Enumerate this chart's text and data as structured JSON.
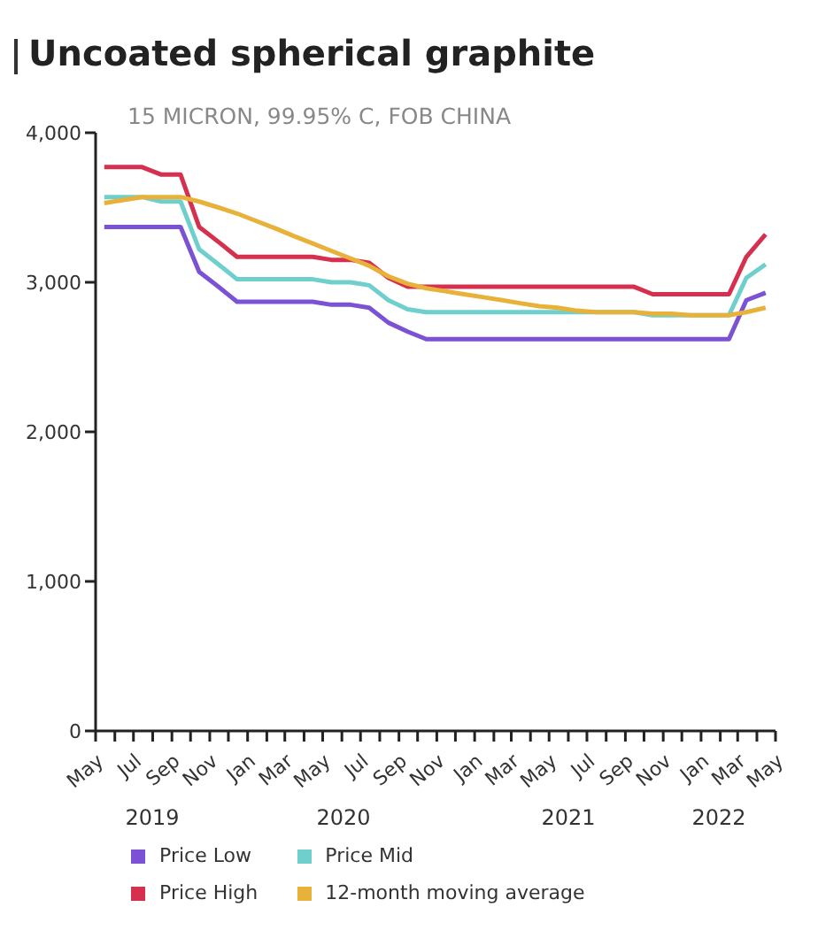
{
  "chart_data": {
    "type": "line",
    "title": "Uncoated spherical graphite",
    "subtitle": "15 MICRON, 99.95% C, FOB CHINA",
    "x": [
      "2019-05-15",
      "2019-06-15",
      "2019-07-15",
      "2019-08-15",
      "2019-09-15",
      "2019-10-15",
      "2019-11-15",
      "2019-12-15",
      "2020-01-15",
      "2020-02-15",
      "2020-03-15",
      "2020-04-15",
      "2020-05-15",
      "2020-06-15",
      "2020-07-15",
      "2020-08-15",
      "2020-09-15",
      "2020-10-15",
      "2020-11-15",
      "2020-12-15",
      "2021-01-15",
      "2021-02-15",
      "2021-03-15",
      "2021-04-15",
      "2021-05-15",
      "2021-06-15",
      "2021-07-15",
      "2021-08-15",
      "2021-09-15",
      "2021-10-15",
      "2021-11-15",
      "2021-12-15",
      "2022-01-15",
      "2022-02-15",
      "2022-03-15",
      "2022-04-15"
    ],
    "series": [
      {
        "name": "Price Low",
        "color": "#7b52d3",
        "values": [
          3370,
          3370,
          3370,
          3370,
          3370,
          3070,
          2970,
          2870,
          2870,
          2870,
          2870,
          2870,
          2850,
          2850,
          2830,
          2730,
          2670,
          2620,
          2620,
          2620,
          2620,
          2620,
          2620,
          2620,
          2620,
          2620,
          2620,
          2620,
          2620,
          2620,
          2620,
          2620,
          2620,
          2620,
          2880,
          2930
        ]
      },
      {
        "name": "Price Mid",
        "color": "#6ecfcc",
        "values": [
          3570,
          3570,
          3570,
          3540,
          3540,
          3220,
          3120,
          3020,
          3020,
          3020,
          3020,
          3020,
          3000,
          3000,
          2980,
          2880,
          2820,
          2800,
          2800,
          2800,
          2800,
          2800,
          2800,
          2800,
          2800,
          2800,
          2800,
          2800,
          2800,
          2780,
          2780,
          2780,
          2780,
          2780,
          3030,
          3120
        ]
      },
      {
        "name": "Price High",
        "color": "#d6304f",
        "values": [
          3770,
          3770,
          3770,
          3720,
          3720,
          3370,
          3270,
          3170,
          3170,
          3170,
          3170,
          3170,
          3150,
          3150,
          3130,
          3030,
          2970,
          2970,
          2970,
          2970,
          2970,
          2970,
          2970,
          2970,
          2970,
          2970,
          2970,
          2970,
          2970,
          2920,
          2920,
          2920,
          2920,
          2920,
          3170,
          3320
        ]
      },
      {
        "name": "12-month moving average",
        "color": "#e8b23a",
        "values": [
          3530,
          3550,
          3570,
          3570,
          3570,
          3540,
          3500,
          3460,
          3410,
          3360,
          3310,
          3260,
          3210,
          3160,
          3110,
          3040,
          2990,
          2960,
          2940,
          2920,
          2900,
          2880,
          2860,
          2840,
          2830,
          2810,
          2800,
          2800,
          2800,
          2790,
          2790,
          2780,
          2780,
          2780,
          2800,
          2830
        ]
      }
    ],
    "xlim": [
      "2019-05-01",
      "2022-05-01"
    ],
    "xticks": [
      {
        "value": "2019-05-01",
        "label": "May"
      },
      {
        "value": "2019-06-01",
        "label": null
      },
      {
        "value": "2019-07-01",
        "label": "Jul"
      },
      {
        "value": "2019-08-01",
        "label": null
      },
      {
        "value": "2019-09-01",
        "label": "Sep"
      },
      {
        "value": "2019-10-01",
        "label": null
      },
      {
        "value": "2019-11-01",
        "label": "Nov"
      },
      {
        "value": "2019-12-01",
        "label": null
      },
      {
        "value": "2020-01-01",
        "label": "Jan"
      },
      {
        "value": "2020-02-01",
        "label": null
      },
      {
        "value": "2020-03-01",
        "label": "Mar"
      },
      {
        "value": "2020-04-01",
        "label": null
      },
      {
        "value": "2020-05-01",
        "label": "May"
      },
      {
        "value": "2020-06-01",
        "label": null
      },
      {
        "value": "2020-07-01",
        "label": "Jul"
      },
      {
        "value": "2020-08-01",
        "label": null
      },
      {
        "value": "2020-09-01",
        "label": "Sep"
      },
      {
        "value": "2020-10-01",
        "label": null
      },
      {
        "value": "2020-11-01",
        "label": "Nov"
      },
      {
        "value": "2020-12-01",
        "label": null
      },
      {
        "value": "2021-01-01",
        "label": "Jan"
      },
      {
        "value": "2021-02-01",
        "label": null
      },
      {
        "value": "2021-03-01",
        "label": "Mar"
      },
      {
        "value": "2021-04-01",
        "label": null
      },
      {
        "value": "2021-05-01",
        "label": "May"
      },
      {
        "value": "2021-06-01",
        "label": null
      },
      {
        "value": "2021-07-01",
        "label": "Jul"
      },
      {
        "value": "2021-08-01",
        "label": null
      },
      {
        "value": "2021-09-01",
        "label": "Sep"
      },
      {
        "value": "2021-10-01",
        "label": null
      },
      {
        "value": "2021-11-01",
        "label": "Nov"
      },
      {
        "value": "2021-12-01",
        "label": null
      },
      {
        "value": "2022-01-01",
        "label": "Jan"
      },
      {
        "value": "2022-02-01",
        "label": null
      },
      {
        "value": "2022-03-01",
        "label": "Mar"
      },
      {
        "value": "2022-04-01",
        "label": null
      },
      {
        "value": "2022-05-01",
        "label": "May"
      }
    ],
    "ylim": [
      0,
      4000
    ],
    "yticks": [
      0,
      {
        "value": 1000,
        "label": "1,000"
      },
      {
        "value": 2000,
        "label": "2,000"
      },
      {
        "value": 3000,
        "label": "3,000"
      },
      {
        "value": 4000,
        "label": "4,000"
      }
    ],
    "annotations": [
      "2019",
      "2020",
      "2021",
      "2022"
    ],
    "grid": false,
    "legend": "bottom"
  }
}
